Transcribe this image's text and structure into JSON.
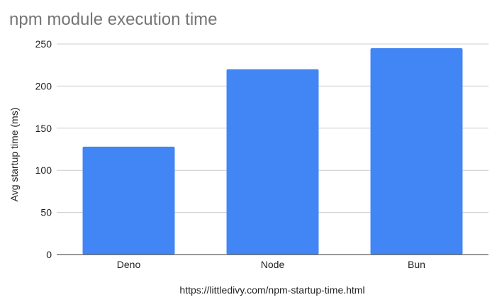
{
  "chart_data": {
    "type": "bar",
    "title": "npm module execution time",
    "categories": [
      "Deno",
      "Node",
      "Bun"
    ],
    "values": [
      128,
      220,
      245
    ],
    "xlabel": "https://littledivy.com/npm-startup-time.html",
    "ylabel": "Avg startup time (ms)",
    "ylim": [
      0,
      250
    ],
    "yticks": [
      0,
      50,
      100,
      150,
      200,
      250
    ],
    "grid": true,
    "legend": "none",
    "bar_color": "#4285f4"
  }
}
